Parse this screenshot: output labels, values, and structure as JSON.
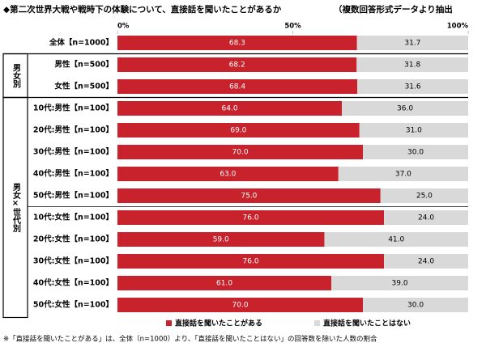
{
  "chart_data": {
    "type": "stacked-bar-horizontal",
    "title": "◆第二次世界大戦や戦時下の体験について、直接話を聞いたことがあるか",
    "subtitle": "（複数回答形式データより抽出",
    "categories": [
      "全体【n=1000】",
      "男性【n=500】",
      "女性【n=500】",
      "10代:男性【n=100】",
      "20代:男性【n=100】",
      "30代:男性【n=100】",
      "40代:男性【n=100】",
      "50代:男性【n=100】",
      "10代:女性【n=100】",
      "20代:女性【n=100】",
      "30代:女性【n=100】",
      "40代:女性【n=100】",
      "50代:女性【n=100】"
    ],
    "groups": [
      null,
      "男女別",
      "男女別",
      "男女×世代別",
      "男女×世代別",
      "男女×世代別",
      "男女×世代別",
      "男女×世代別",
      "男女×世代別",
      "男女×世代別",
      "男女×世代別",
      "男女×世代別",
      "男女×世代別"
    ],
    "series": [
      {
        "name": "直接話を聞いたことがある",
        "color": "#c8232c",
        "values": [
          68.3,
          68.2,
          68.4,
          64.0,
          69.0,
          70.0,
          63.0,
          75.0,
          76.0,
          59.0,
          76.0,
          61.0,
          70.0
        ],
        "value_labels": [
          "68.3",
          "68.2",
          "68.4",
          "64.0",
          "69.0",
          "70.0",
          "63.0",
          "75.0",
          "76.0",
          "59.0",
          "76.0",
          "61.0",
          "70.0"
        ]
      },
      {
        "name": "直接話を聞いたことはない",
        "color": "#d9d9d9",
        "values": [
          31.7,
          31.8,
          31.6,
          36.0,
          31.0,
          30.0,
          37.0,
          25.0,
          24.0,
          41.0,
          24.0,
          39.0,
          30.0
        ],
        "value_labels": [
          "31.7",
          "31.8",
          "31.6",
          "36.0",
          "31.0",
          "30.0",
          "37.0",
          "25.0",
          "24.0",
          "41.0",
          "24.0",
          "39.0",
          "30.0"
        ]
      }
    ],
    "xlim": [
      0,
      100
    ],
    "xticks": [
      {
        "value": 0,
        "label": "0%"
      },
      {
        "value": 50,
        "label": "50%"
      },
      {
        "value": 100,
        "label": "100%"
      }
    ],
    "note": "※「直接話を聞いたことがある」は、全体（n=1000）より、「直接話を聞いたことはない」の回答数を除いた人数の割合"
  }
}
